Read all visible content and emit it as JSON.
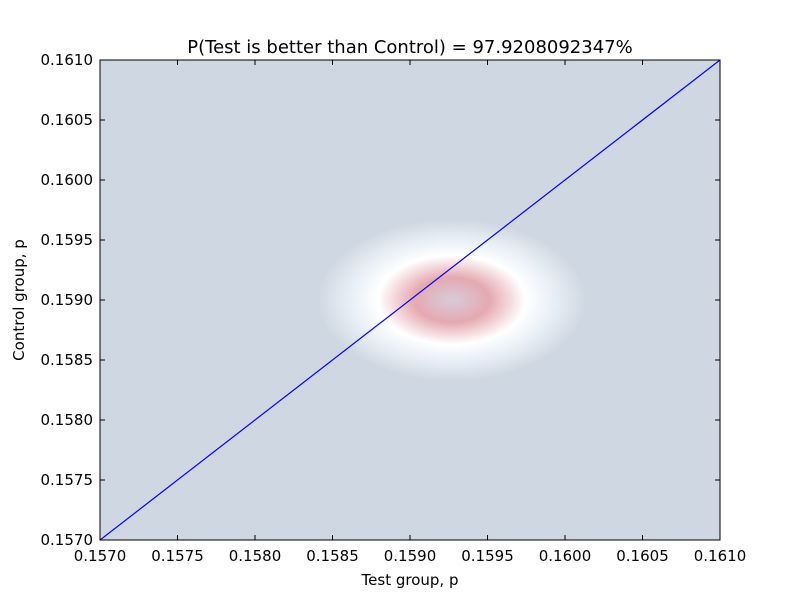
{
  "chart_data": {
    "type": "heatmap",
    "title": "P(Test is better than Control) = 97.9208092347%",
    "xlabel": "Test group, p",
    "ylabel": "Control group, p",
    "xlim": [
      0.157,
      0.161
    ],
    "ylim": [
      0.157,
      0.161
    ],
    "xticks": [
      "0.1570",
      "0.1575",
      "0.1580",
      "0.1585",
      "0.1590",
      "0.1595",
      "0.1600",
      "0.1605",
      "0.1610"
    ],
    "yticks": [
      "0.1570",
      "0.1575",
      "0.1580",
      "0.1585",
      "0.1590",
      "0.1595",
      "0.1600",
      "0.1605",
      "0.1610"
    ],
    "grid": false,
    "density_peak": {
      "x": 0.15927,
      "y": 0.159
    },
    "density_spread": {
      "x": 0.00027,
      "y": 0.00021
    },
    "reference_line": {
      "from": [
        0.157,
        0.157
      ],
      "to": [
        0.161,
        0.161
      ]
    },
    "colors": {
      "background": "#cfd7e2",
      "line": "#0000ff",
      "density_low": "#cfd7e2",
      "density_mid": "#ffffff",
      "density_high": "#e5a9b1",
      "density_peak": "#d8cbd9"
    }
  }
}
